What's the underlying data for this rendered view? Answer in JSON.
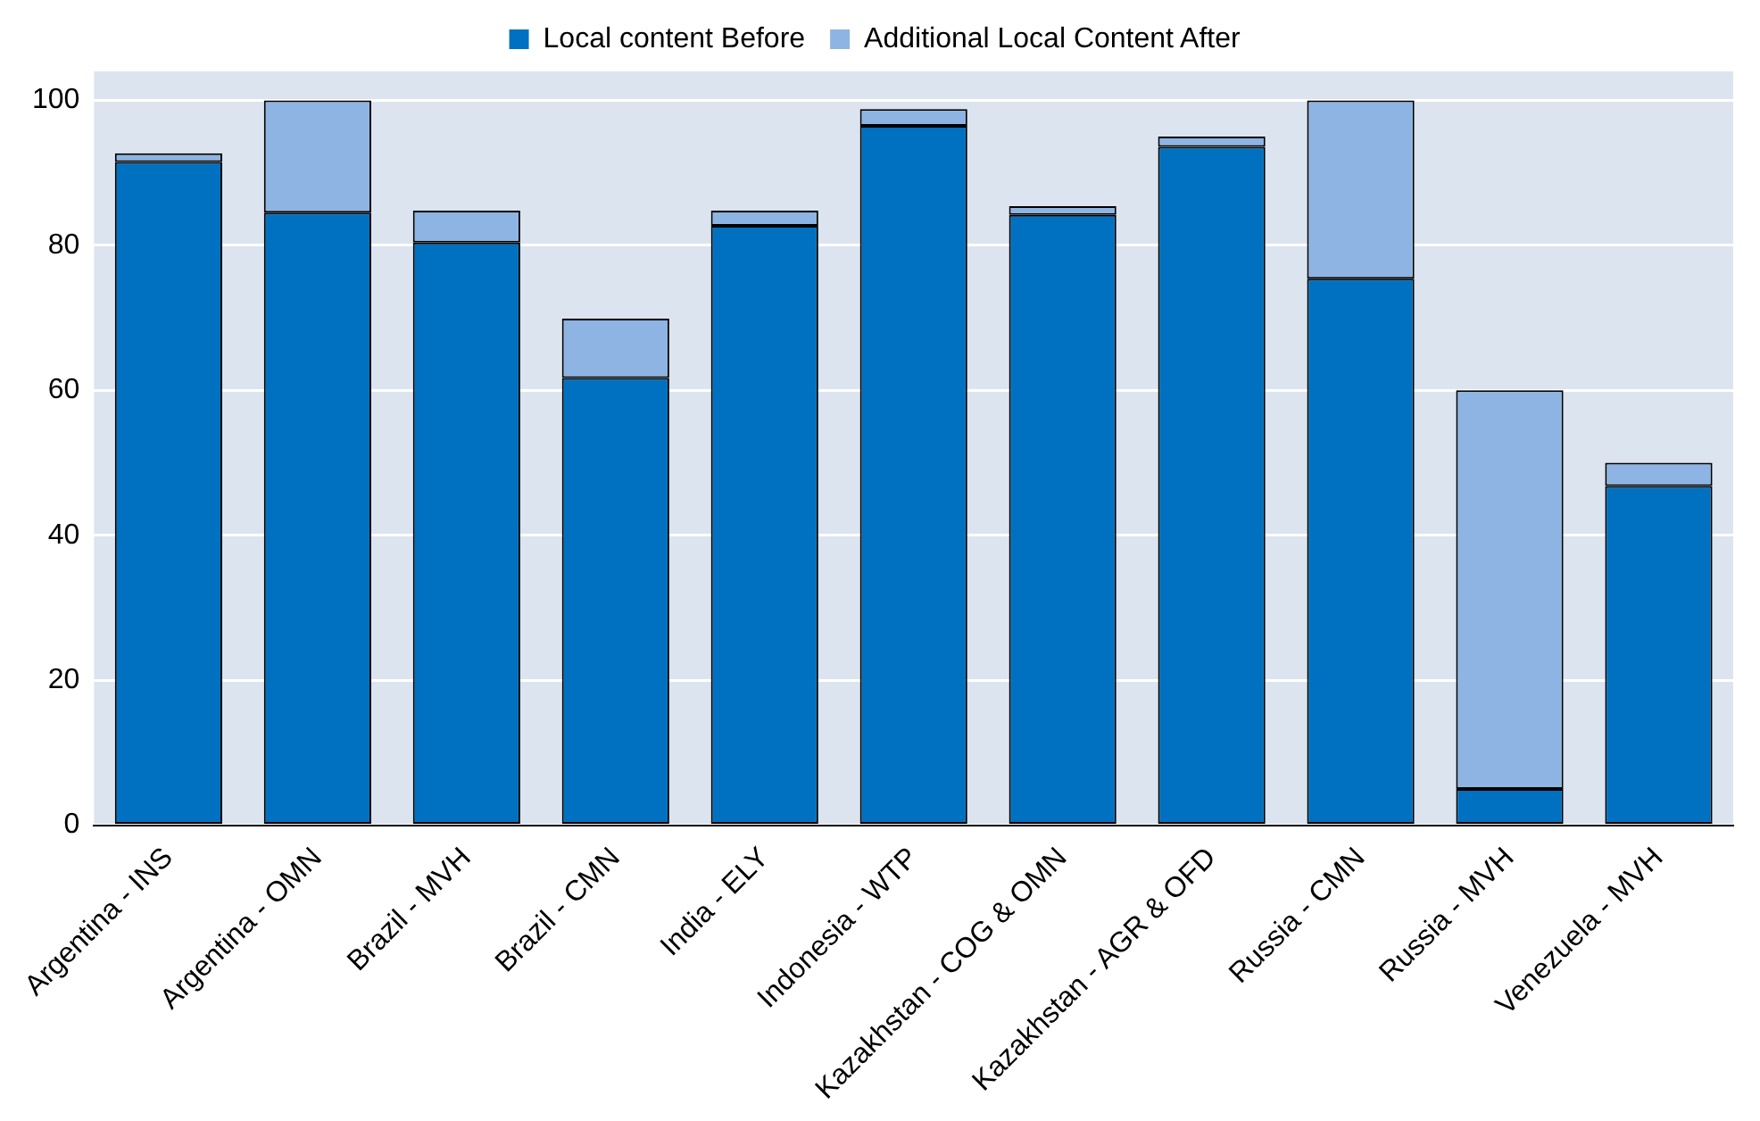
{
  "chart_data": {
    "type": "bar",
    "stacked": true,
    "categories": [
      "Argentina - INS",
      "Argentina - OMN",
      "Brazil - MVH",
      "Brazil - CMN",
      "India - ELY",
      "Indonesia - WTP",
      "Kazakhstan - COG & OMN",
      "Kazakhstan - AGR & OFD",
      "Russia - CMN",
      "Russia - MVH",
      "Venezuela - MVH"
    ],
    "series": [
      {
        "name": "Local content Before",
        "color": "#0070c0",
        "values": [
          91.5,
          84.5,
          80.4,
          61.7,
          82.7,
          96.5,
          84.2,
          93.6,
          75.4,
          5,
          46.8
        ]
      },
      {
        "name": "Additional Local Content After",
        "color": "#8db4e2",
        "values": [
          1.2,
          15.5,
          4.4,
          8.2,
          2.1,
          2.3,
          1.2,
          1.4,
          24.6,
          55,
          3.2
        ]
      }
    ],
    "ylim": [
      0,
      104
    ],
    "yticks": [
      0,
      20,
      40,
      60,
      80,
      100
    ],
    "grid": "y",
    "legend": "top"
  }
}
